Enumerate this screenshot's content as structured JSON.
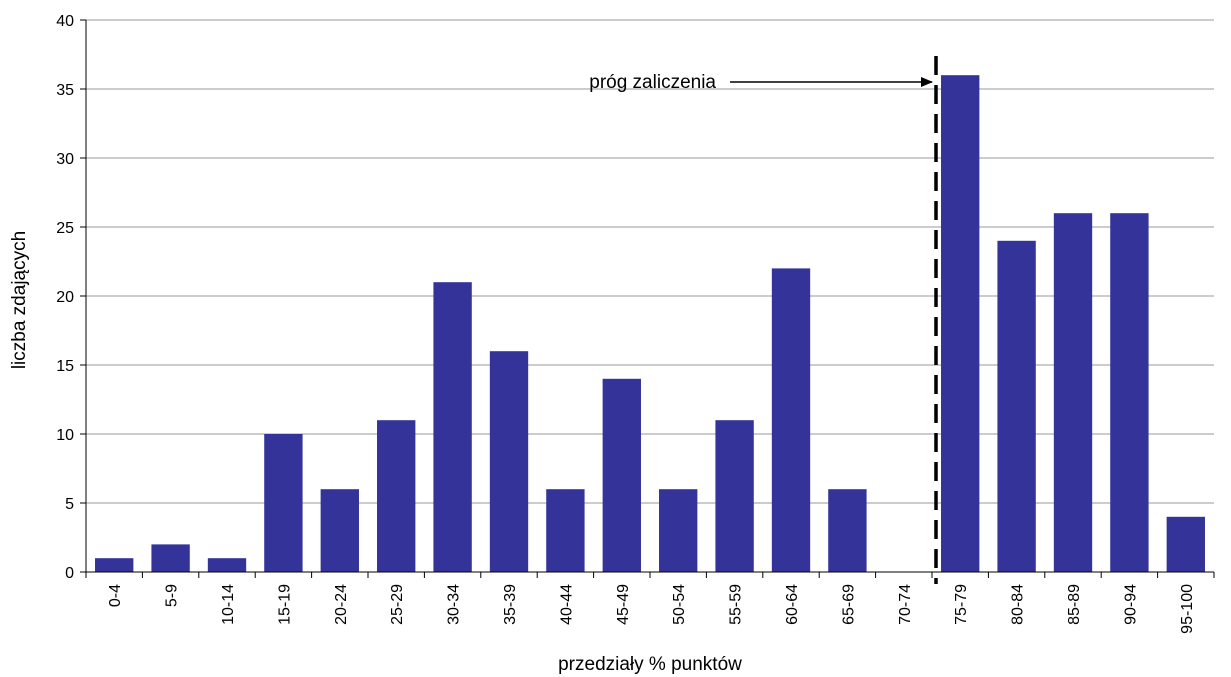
{
  "chart_data": {
    "type": "bar",
    "title": "",
    "xlabel": "przedziały % punktów",
    "ylabel": "liczba zdających",
    "ylim": [
      0,
      40
    ],
    "yticks": [
      0,
      5,
      10,
      15,
      20,
      25,
      30,
      35,
      40
    ],
    "grid": true,
    "categories": [
      "0-4",
      "5-9",
      "10-14",
      "15-19",
      "20-24",
      "25-29",
      "30-34",
      "35-39",
      "40-44",
      "45-49",
      "50-54",
      "55-59",
      "60-64",
      "65-69",
      "70-74",
      "75-79",
      "80-84",
      "85-89",
      "90-94",
      "95-100"
    ],
    "values": [
      1,
      2,
      1,
      10,
      6,
      11,
      21,
      16,
      6,
      14,
      6,
      11,
      22,
      6,
      0,
      36,
      24,
      26,
      26,
      4
    ],
    "bar_color": "#333399",
    "annotation": {
      "text": "próg zaliczenia",
      "at_category": "75-79",
      "style": "dashed-vertical-line-with-arrow"
    }
  }
}
